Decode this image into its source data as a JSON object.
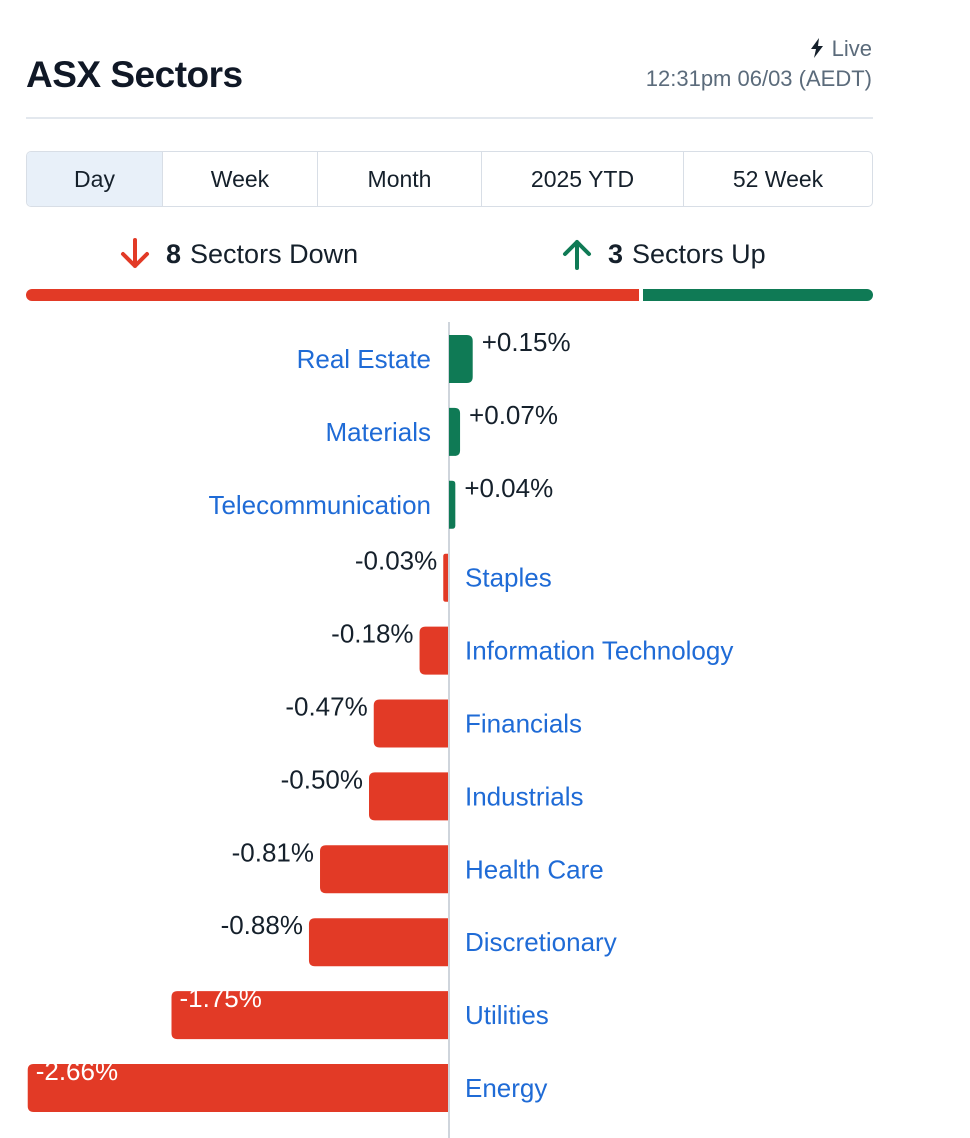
{
  "header": {
    "title": "ASX Sectors",
    "live_label": "Live",
    "timestamp": "12:31pm 06/03 (AEDT)"
  },
  "tabs": [
    {
      "label": "Day",
      "active": true
    },
    {
      "label": "Week",
      "active": false
    },
    {
      "label": "Month",
      "active": false
    },
    {
      "label": "2025 YTD",
      "active": false
    },
    {
      "label": "52 Week",
      "active": false
    }
  ],
  "summary": {
    "down_count": "8",
    "down_label": "Sectors Down",
    "up_count": "3",
    "up_label": "Sectors Up"
  },
  "colors": {
    "down": "#e23a26",
    "up": "#0f7a55",
    "link": "#1f6bd6"
  },
  "chart_data": {
    "type": "bar",
    "orientation": "horizontal-diverging",
    "categories": [
      "Real Estate",
      "Materials",
      "Telecommunication",
      "Staples",
      "Information Technology",
      "Financials",
      "Industrials",
      "Health Care",
      "Discretionary",
      "Utilities",
      "Energy"
    ],
    "values": [
      0.15,
      0.07,
      0.04,
      -0.03,
      -0.18,
      -0.47,
      -0.5,
      -0.81,
      -0.88,
      -1.75,
      -2.66
    ],
    "value_labels": [
      "+0.15%",
      "+0.07%",
      "+0.04%",
      "-0.03%",
      "-0.18%",
      "-0.47%",
      "-0.50%",
      "-0.81%",
      "-0.88%",
      "-1.75%",
      "-2.66%"
    ],
    "unit": "%",
    "grid": false,
    "legend": "none"
  }
}
